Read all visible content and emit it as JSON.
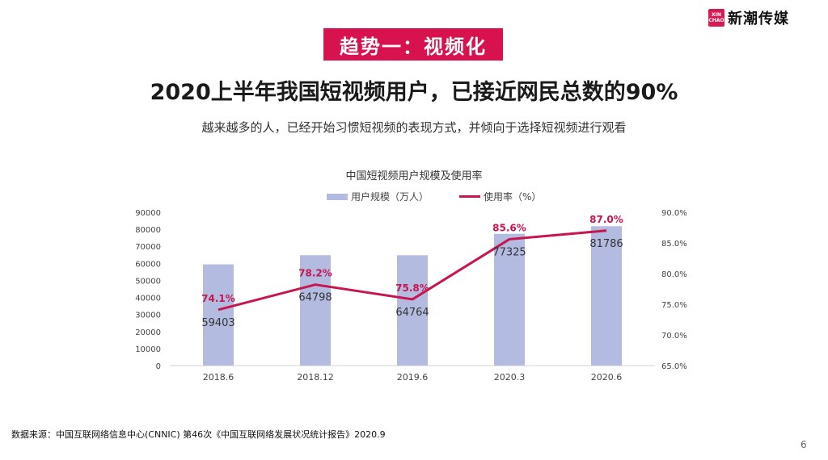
{
  "logo": {
    "badge_line1": "XIN",
    "badge_line2": "CHAO",
    "text": "新潮传媒"
  },
  "section_tag": "趋势一：视频化",
  "headline": "2020上半年我国短视频用户，已接近网民总数的90%",
  "subline": "越来越多的人，已经开始习惯短视频的表现方式，并倾向于选择短视频进行观看",
  "source": "数据来源：中国互联网络信息中心(CNNIC) 第46次《中国互联网络发展状况统计报告》2020.9",
  "page_number": "6",
  "colors": {
    "accent": "#d7124f",
    "bar": "#b3bce0",
    "line": "#c8154f"
  },
  "chart_data": {
    "type": "bar",
    "title": "中国短视频用户规模及使用率",
    "categories": [
      "2018.6",
      "2018.12",
      "2019.6",
      "2020.3",
      "2020.6"
    ],
    "series": [
      {
        "name": "用户规模（万人）",
        "type": "bar",
        "axis": "left",
        "values": [
          59403,
          64798,
          64764,
          77325,
          81786
        ],
        "labels": [
          "59403",
          "64798",
          "64764",
          "77325",
          "81786"
        ]
      },
      {
        "name": "使用率（%）",
        "type": "line",
        "axis": "right",
        "values": [
          74.1,
          78.2,
          75.8,
          85.6,
          87.0
        ],
        "labels": [
          "74.1%",
          "78.2%",
          "75.8%",
          "85.6%",
          "87.0%"
        ]
      }
    ],
    "y_left": {
      "ylim": [
        0,
        90000
      ],
      "ticks": [
        "0",
        "10000",
        "20000",
        "30000",
        "40000",
        "50000",
        "60000",
        "70000",
        "80000",
        "90000"
      ]
    },
    "y_right": {
      "ylim": [
        65,
        90
      ],
      "ticks": [
        "65.0%",
        "70.0%",
        "75.0%",
        "80.0%",
        "85.0%",
        "90.0%"
      ]
    },
    "legend_position": "top",
    "grid": false
  }
}
